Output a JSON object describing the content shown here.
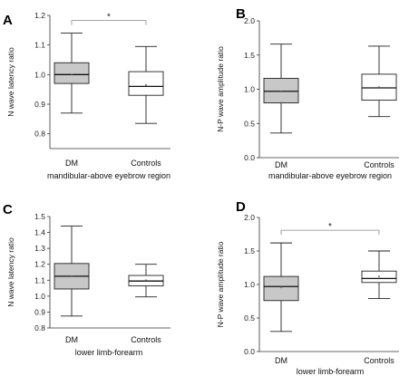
{
  "colors": {
    "dm_box": "#c8c8c8",
    "controls_box": "#ffffff",
    "stroke": "#222222",
    "bracket": "#888888"
  },
  "chart_data": [
    {
      "panel": "A",
      "type": "box",
      "ylabel": "N wave latency ratio",
      "xlabel": "mandibular-above eyebrow region",
      "ylim": [
        0.75,
        1.2
      ],
      "yticks": [
        "0.8",
        "0.9",
        "1.0",
        "1.1",
        "1.2"
      ],
      "significance": "*",
      "series": [
        {
          "name": "DM",
          "min": 0.87,
          "q1": 0.97,
          "median": 1.0,
          "q3": 1.04,
          "max": 1.14,
          "mean": 1.0
        },
        {
          "name": "Controls",
          "min": 0.835,
          "q1": 0.93,
          "median": 0.96,
          "q3": 1.01,
          "max": 1.095,
          "mean": 0.965
        }
      ]
    },
    {
      "panel": "B",
      "type": "box",
      "ylabel": "N-P wave amplitude ratio",
      "xlabel": "mandibular-above eyebrow region",
      "ylim": [
        0.0,
        2.0
      ],
      "yticks": [
        "0.0",
        "0.5",
        "1.0",
        "1.5",
        "2.0"
      ],
      "significance": "",
      "series": [
        {
          "name": "DM",
          "min": 0.36,
          "q1": 0.8,
          "median": 0.97,
          "q3": 1.16,
          "max": 1.66,
          "mean": 0.97
        },
        {
          "name": "Controls",
          "min": 0.6,
          "q1": 0.84,
          "median": 1.02,
          "q3": 1.22,
          "max": 1.63,
          "mean": 1.03
        }
      ]
    },
    {
      "panel": "C",
      "type": "box",
      "ylabel": "N wave latency ratio",
      "xlabel": "lower limb-forearm",
      "ylim": [
        0.8,
        1.5
      ],
      "yticks": [
        "0.8",
        "0.9",
        "1.0",
        "1.1",
        "1.2",
        "1.3",
        "1.4",
        "1.5"
      ],
      "significance": "",
      "series": [
        {
          "name": "DM",
          "min": 0.875,
          "q1": 1.045,
          "median": 1.125,
          "q3": 1.205,
          "max": 1.44,
          "mean": 1.125
        },
        {
          "name": "Controls",
          "min": 0.995,
          "q1": 1.065,
          "median": 1.095,
          "q3": 1.13,
          "max": 1.2,
          "mean": 1.1
        }
      ]
    },
    {
      "panel": "D",
      "type": "box",
      "ylabel": "N-P wave amplitude ratio",
      "xlabel": "lower limb-forearm",
      "ylim": [
        0.0,
        2.0
      ],
      "yticks": [
        "0.0",
        "0.5",
        "1.0",
        "1.5",
        "2.0"
      ],
      "significance": "*",
      "series": [
        {
          "name": "DM",
          "min": 0.3,
          "q1": 0.76,
          "median": 0.97,
          "q3": 1.12,
          "max": 1.62,
          "mean": 0.96
        },
        {
          "name": "Controls",
          "min": 0.79,
          "q1": 1.03,
          "median": 1.09,
          "q3": 1.2,
          "max": 1.5,
          "mean": 1.12
        }
      ]
    }
  ]
}
